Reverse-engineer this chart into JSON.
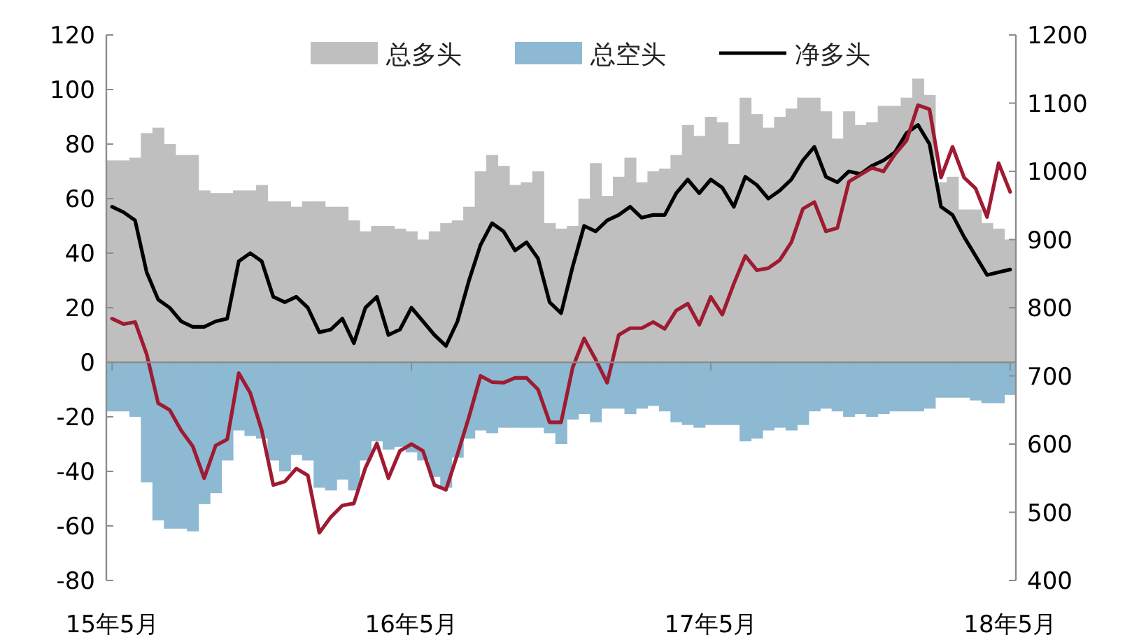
{
  "chart_data": {
    "type": "bar",
    "stacked": true,
    "legend": "top",
    "categories": [
      "15年5月",
      null,
      null,
      null,
      null,
      null,
      null,
      null,
      null,
      null,
      null,
      null,
      null,
      null,
      null,
      null,
      null,
      null,
      null,
      null,
      null,
      null,
      null,
      null,
      null,
      null,
      "16年5月",
      null,
      null,
      null,
      null,
      null,
      null,
      null,
      null,
      null,
      null,
      null,
      null,
      null,
      null,
      null,
      null,
      null,
      null,
      null,
      null,
      null,
      null,
      null,
      null,
      null,
      "17年5月",
      null,
      null,
      null,
      null,
      null,
      null,
      null,
      null,
      null,
      null,
      null,
      null,
      null,
      null,
      null,
      null,
      null,
      null,
      null,
      null,
      null,
      null,
      null,
      null,
      null,
      "18年5月"
    ],
    "ylim": [
      -80,
      120
    ],
    "yticks": [
      -80,
      -60,
      -40,
      -20,
      0,
      20,
      40,
      60,
      80,
      100,
      120
    ],
    "y2lim": [
      400,
      1200
    ],
    "y2ticks": [
      400,
      500,
      600,
      700,
      800,
      900,
      1000,
      1100,
      1200
    ],
    "series": [
      {
        "name": "总多头",
        "color": "#bfbfbf",
        "values": [
          74,
          74,
          75,
          84,
          86,
          80,
          76,
          76,
          63,
          62,
          62,
          63,
          63,
          65,
          59,
          59,
          57,
          59,
          59,
          57,
          57,
          52,
          48,
          50,
          50,
          49,
          48,
          45,
          48,
          51,
          52,
          57,
          70,
          76,
          72,
          65,
          66,
          70,
          51,
          49,
          50,
          60,
          73,
          61,
          68,
          75,
          66,
          70,
          71,
          76,
          87,
          83,
          90,
          88,
          80,
          97,
          91,
          86,
          90,
          93,
          97,
          97,
          92,
          82,
          92,
          87,
          88,
          94,
          94,
          97,
          104,
          98,
          66,
          68,
          56,
          56,
          51,
          49,
          45
        ]
      },
      {
        "name": "总空头",
        "color": "#8db9d2",
        "values": [
          -18,
          -18,
          -20,
          -44,
          -58,
          -61,
          -61,
          -62,
          -52,
          -48,
          -36,
          -25,
          -27,
          -28,
          -36,
          -40,
          -34,
          -36,
          -46,
          -47,
          -43,
          -47,
          -36,
          -29,
          -32,
          -31,
          -33,
          -36,
          -42,
          -46,
          -35,
          -28,
          -25,
          -26,
          -24,
          -24,
          -24,
          -24,
          -26,
          -30,
          -21,
          -19,
          -22,
          -17,
          -17,
          -19,
          -17,
          -16,
          -18,
          -22,
          -23,
          -24,
          -23,
          -23,
          -23,
          -29,
          -28,
          -25,
          -24,
          -25,
          -23,
          -18,
          -17,
          -18,
          -20,
          -19,
          -20,
          -19,
          -18,
          -18,
          -18,
          -17,
          -13,
          -13,
          -13,
          -14,
          -15,
          -15,
          -12
        ]
      },
      {
        "name": "净多头",
        "type": "line",
        "color": "#000000",
        "values": [
          57,
          55,
          52,
          33,
          23,
          20,
          15,
          13,
          13,
          15,
          16,
          37,
          40,
          37,
          24,
          22,
          24,
          20,
          11,
          12,
          16,
          7,
          20,
          24,
          10,
          12,
          20,
          15,
          10,
          6,
          15,
          30,
          43,
          51,
          48,
          41,
          44,
          38,
          22,
          18,
          35,
          50,
          48,
          52,
          54,
          57,
          53,
          54,
          54,
          62,
          67,
          62,
          67,
          64,
          57,
          68,
          65,
          60,
          63,
          67,
          74,
          79,
          68,
          66,
          70,
          69,
          72,
          74,
          77,
          84,
          87,
          80,
          57,
          54,
          46,
          39,
          32,
          33,
          34
        ]
      },
      {
        "type": "line",
        "axis": "y2",
        "color": "#9e1b32",
        "values": [
          784,
          776,
          779,
          732,
          660,
          650,
          620,
          597,
          550,
          598,
          607,
          704,
          675,
          620,
          540,
          545,
          564,
          554,
          470,
          493,
          510,
          513,
          565,
          601,
          550,
          590,
          600,
          590,
          540,
          533,
          585,
          640,
          700,
          691,
          690,
          697,
          697,
          680,
          632,
          632,
          712,
          755,
          724,
          690,
          760,
          770,
          770,
          779,
          769,
          796,
          806,
          775,
          816,
          790,
          835,
          876,
          855,
          858,
          870,
          896,
          945,
          955,
          912,
          917,
          985,
          995,
          1005,
          1000,
          1025,
          1045,
          1097,
          1091,
          991,
          1036,
          991,
          975,
          933,
          1012,
          970
        ]
      }
    ]
  }
}
